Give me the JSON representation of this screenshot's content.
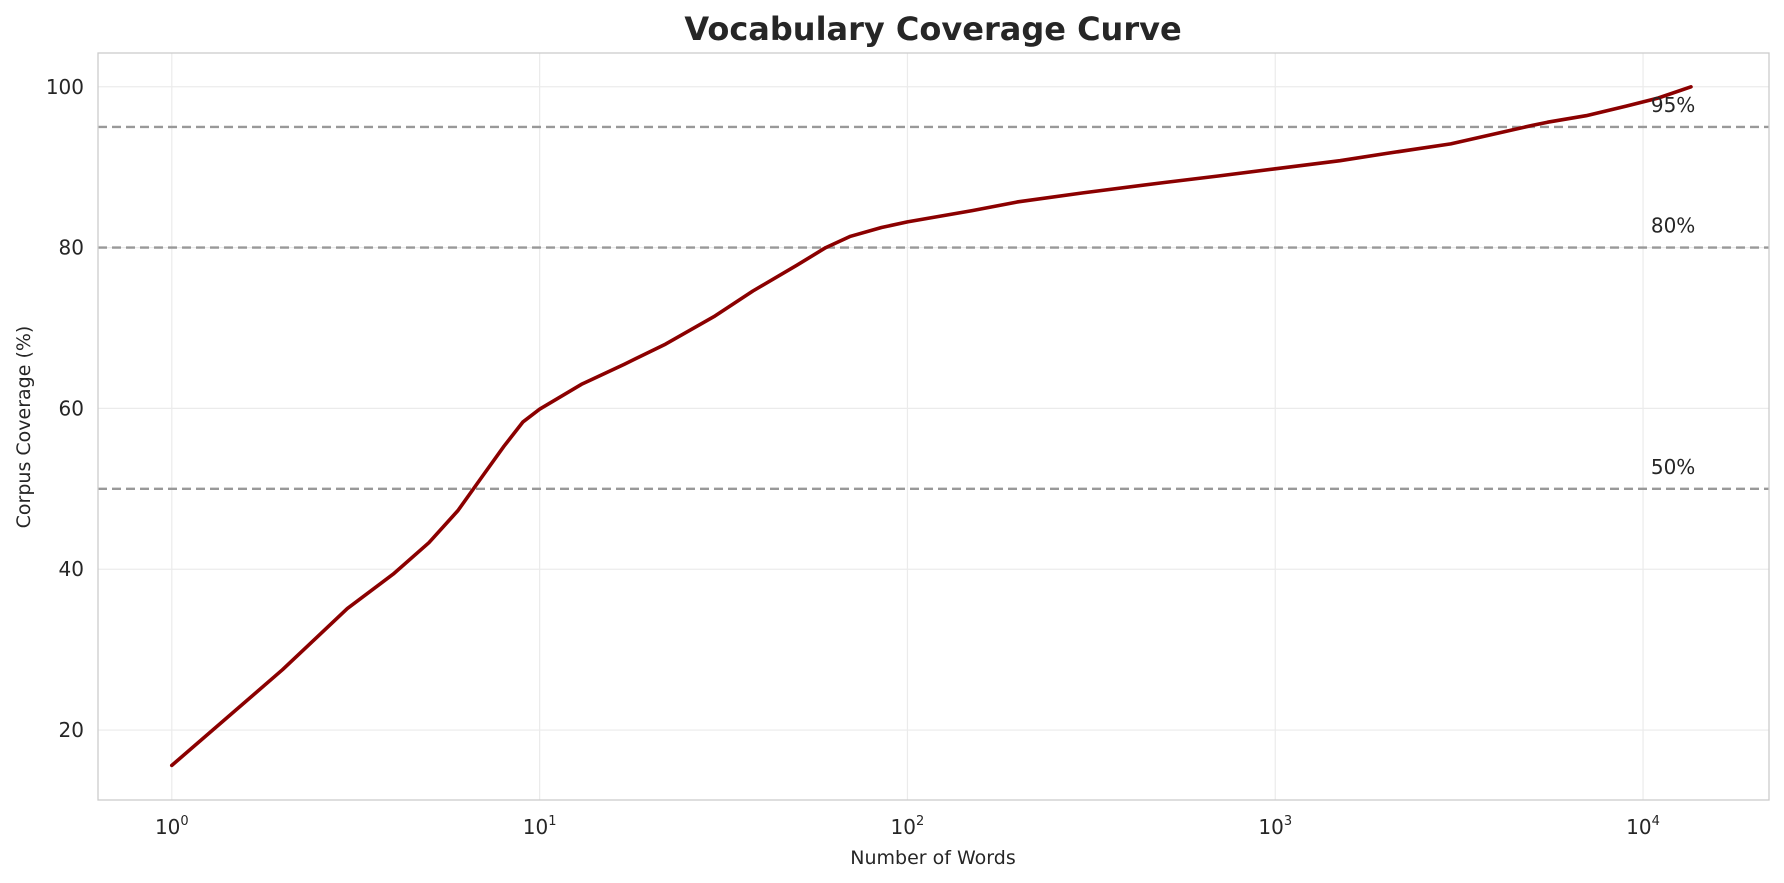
{
  "chart_data": {
    "type": "line",
    "title": "Vocabulary Coverage Curve",
    "xlabel": "Number of Words",
    "ylabel": "Corpus Coverage (%)",
    "xscale": "log",
    "xlim": [
      0.63,
      22000
    ],
    "ylim": [
      11.3,
      104.2
    ],
    "grid": true,
    "x_ticks": [
      {
        "base": "10",
        "exp": "0",
        "value": 1
      },
      {
        "base": "10",
        "exp": "1",
        "value": 10
      },
      {
        "base": "10",
        "exp": "2",
        "value": 100
      },
      {
        "base": "10",
        "exp": "3",
        "value": 1000
      },
      {
        "base": "10",
        "exp": "4",
        "value": 10000
      }
    ],
    "y_ticks": [
      20,
      40,
      60,
      80,
      100
    ],
    "series": [
      {
        "color": "#8b0000",
        "x": [
          1,
          2,
          3,
          4,
          5,
          6,
          7,
          8,
          9,
          10,
          13,
          17,
          22,
          30,
          38,
          50,
          60,
          70,
          85,
          100,
          150,
          200,
          300,
          500,
          700,
          1000,
          1500,
          2000,
          3000,
          5000,
          5500,
          7000,
          9000,
          11000,
          13500
        ],
        "y": [
          15.6,
          27.5,
          35.1,
          39.4,
          43.3,
          47.3,
          51.6,
          55.3,
          58.3,
          59.9,
          63.0,
          65.5,
          68.0,
          71.5,
          74.6,
          77.8,
          80.0,
          81.4,
          82.5,
          83.2,
          84.6,
          85.7,
          86.8,
          88.1,
          88.9,
          89.8,
          90.8,
          91.7,
          92.9,
          95.2,
          95.6,
          96.4,
          97.6,
          98.6,
          100.0
        ]
      }
    ],
    "reference_lines": [
      {
        "y": 95,
        "label": "95%",
        "color": "#999999"
      },
      {
        "y": 80,
        "label": "80%",
        "color": "#999999"
      },
      {
        "y": 50,
        "label": "50%",
        "color": "#999999"
      }
    ]
  }
}
